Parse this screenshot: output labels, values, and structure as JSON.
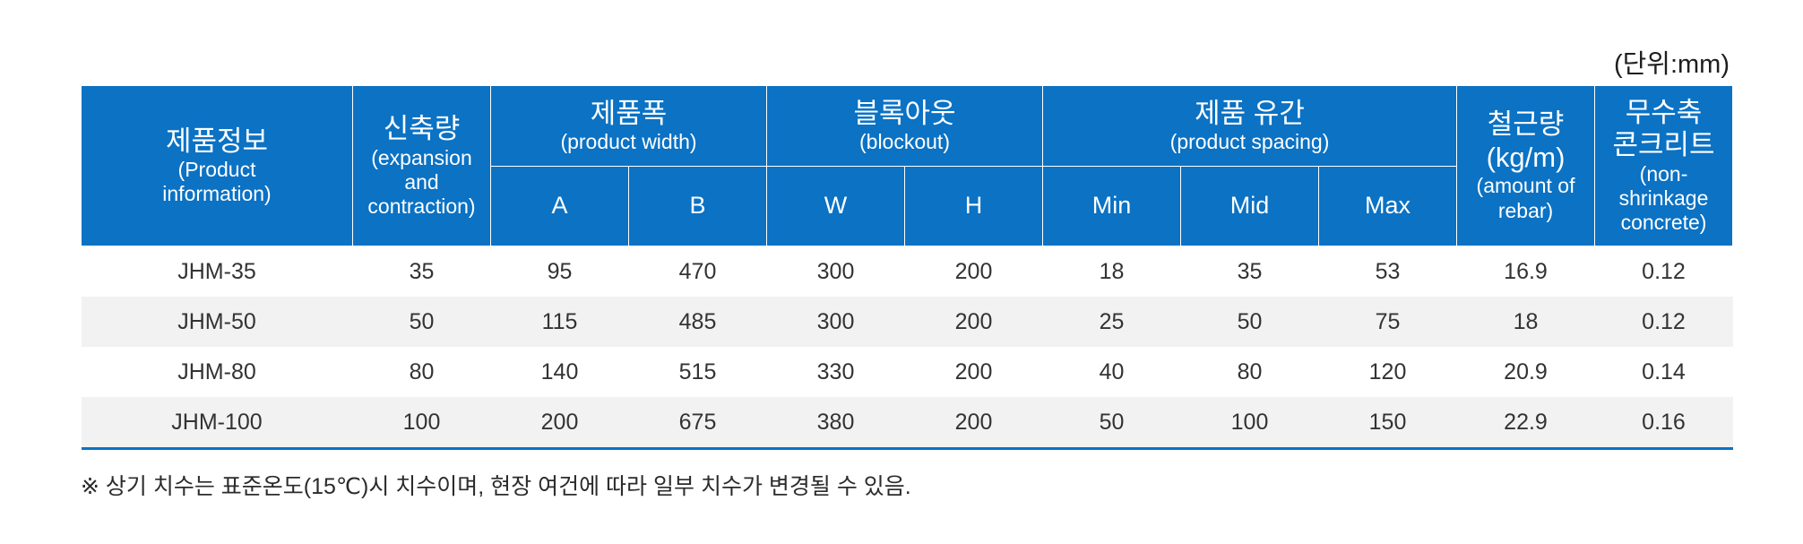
{
  "unit_label": "(단위:mm)",
  "headers": {
    "product_info": {
      "ko": "제품정보",
      "en1": "(Product",
      "en2": "information)"
    },
    "expansion": {
      "ko": "신축량",
      "en1": "(expansion",
      "en2": "and",
      "en3": "contraction)"
    },
    "width": {
      "ko": "제품폭",
      "en": "(product width)",
      "sub": [
        "A",
        "B"
      ]
    },
    "blockout": {
      "ko": "블록아웃",
      "en": "(blockout)",
      "sub": [
        "W",
        "H"
      ]
    },
    "spacing": {
      "ko": "제품 유간",
      "en": "(product spacing)",
      "sub": [
        "Min",
        "Mid",
        "Max"
      ]
    },
    "rebar": {
      "ko1": "철근량",
      "ko2": "(kg/m)",
      "en1": "(amount of",
      "en2": "rebar)"
    },
    "concrete": {
      "ko1": "무수축",
      "ko2": "콘크리트",
      "en1": "(non-shrinkage",
      "en2": "concrete)"
    }
  },
  "rows": [
    [
      "JHM-35",
      "35",
      "95",
      "470",
      "300",
      "200",
      "18",
      "35",
      "53",
      "16.9",
      "0.12"
    ],
    [
      "JHM-50",
      "50",
      "115",
      "485",
      "300",
      "200",
      "25",
      "50",
      "75",
      "18",
      "0.12"
    ],
    [
      "JHM-80",
      "80",
      "140",
      "515",
      "330",
      "200",
      "40",
      "80",
      "120",
      "20.9",
      "0.14"
    ],
    [
      "JHM-100",
      "100",
      "200",
      "675",
      "380",
      "200",
      "50",
      "100",
      "150",
      "22.9",
      "0.16"
    ]
  ],
  "note": "※ 상기 치수는 표준온도(15℃)시 치수이며, 현장 여건에 따라 일부 치수가 변경될 수 있음.",
  "colors": {
    "header_bg": "#0b72c4",
    "alt_row_bg": "#f2f2f2",
    "rule": "#0b72c4"
  }
}
